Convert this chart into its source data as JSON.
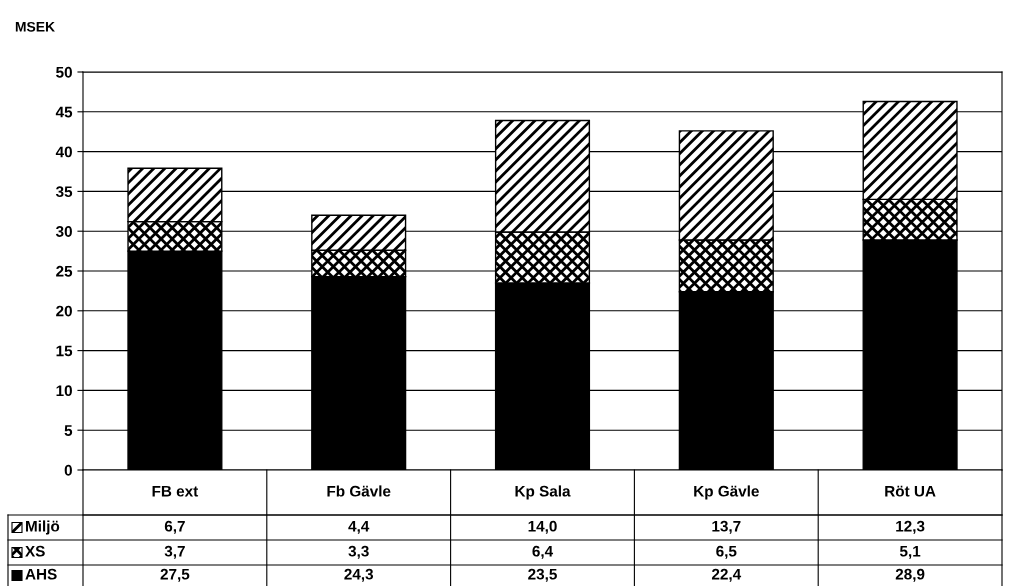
{
  "chart_data": {
    "type": "bar",
    "stacked": true,
    "ylabel": "MSEK",
    "categories": [
      "FB ext",
      "Fb Gävle",
      "Kp Sala",
      "Kp Gävle",
      "Röt UA"
    ],
    "series": [
      {
        "name": "AHS",
        "color": "#000000",
        "values": [
          27.5,
          24.3,
          23.5,
          22.4,
          28.9
        ],
        "value_labels": [
          "27,5",
          "24,3",
          "23,5",
          "22,4",
          "28,9"
        ]
      },
      {
        "name": "XS",
        "color": "#000000",
        "values": [
          3.7,
          3.3,
          6.4,
          6.5,
          5.1
        ],
        "value_labels": [
          "3,7",
          "3,3",
          "6,4",
          "6,5",
          "5,1"
        ]
      },
      {
        "name": "Miljö",
        "color": "#000000",
        "values": [
          6.7,
          4.4,
          14.0,
          13.7,
          12.3
        ],
        "value_labels": [
          "6,7",
          "4,4",
          "14,0",
          "13,7",
          "12,3"
        ]
      }
    ],
    "ylim": [
      0,
      50
    ],
    "yticks": [
      0,
      5,
      10,
      15,
      20,
      25,
      30,
      35,
      40,
      45,
      50
    ],
    "grid": "y",
    "legend": "bottom"
  }
}
